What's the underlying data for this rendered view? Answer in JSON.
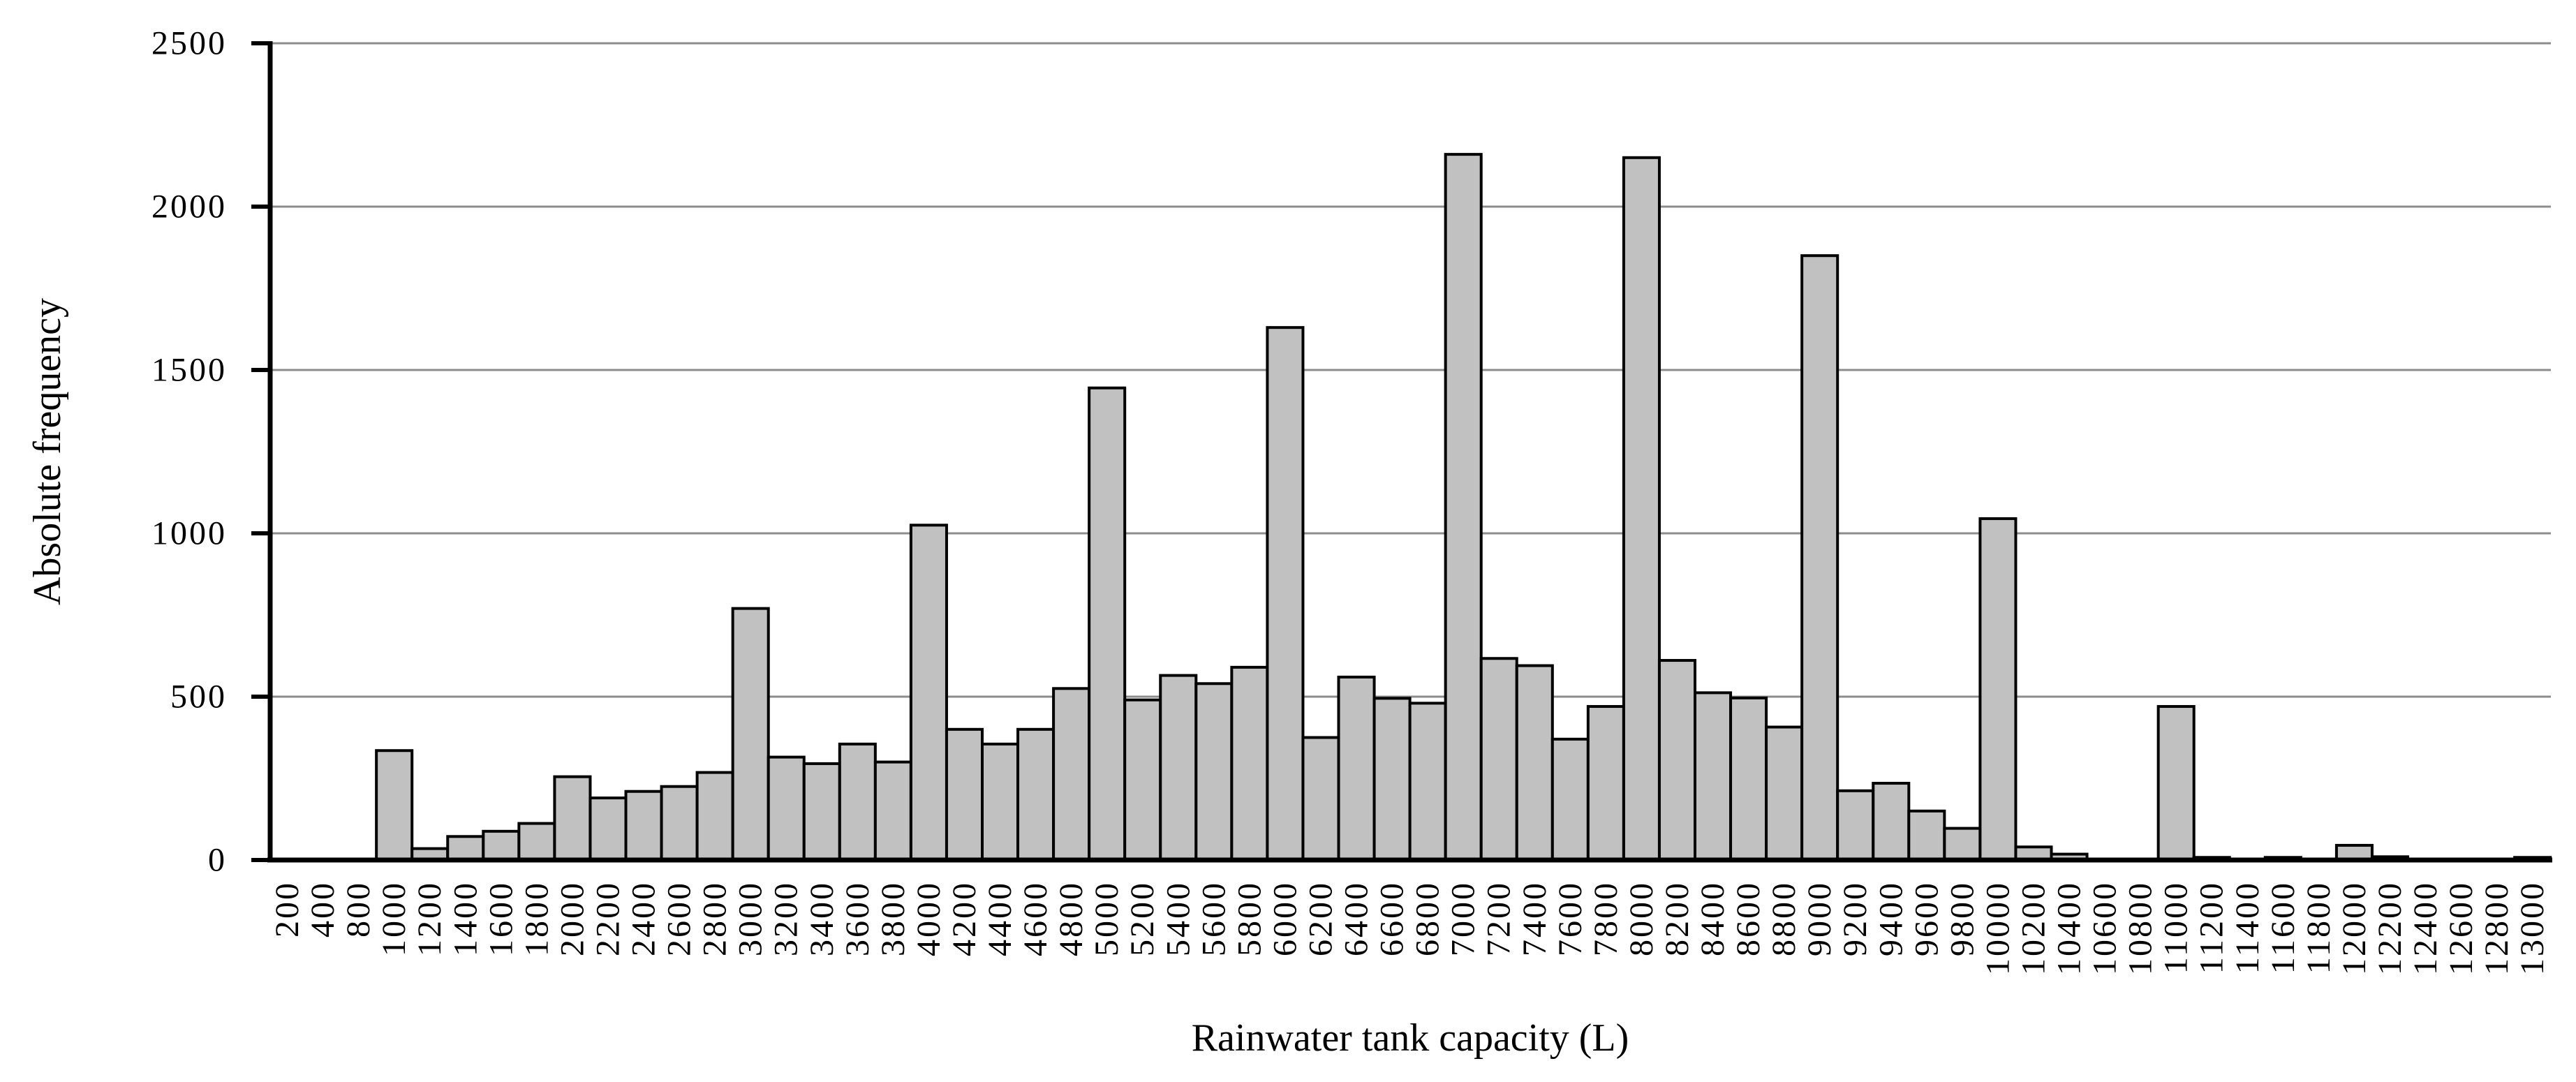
{
  "chart_data": {
    "type": "bar",
    "title": "",
    "xlabel": "Rainwater tank capacity (L)",
    "ylabel": "Absolute frequency",
    "categories": [
      "200",
      "400",
      "800",
      "1000",
      "1200",
      "1400",
      "1600",
      "1800",
      "2000",
      "2200",
      "2400",
      "2600",
      "2800",
      "3000",
      "3200",
      "3400",
      "3600",
      "3800",
      "4000",
      "4200",
      "4400",
      "4600",
      "4800",
      "5000",
      "5200",
      "5400",
      "5600",
      "5800",
      "6000",
      "6200",
      "6400",
      "6600",
      "6800",
      "7000",
      "7200",
      "7400",
      "7600",
      "7800",
      "8000",
      "8200",
      "8400",
      "8600",
      "8800",
      "9000",
      "9200",
      "9400",
      "9600",
      "9800",
      "10000",
      "10200",
      "10400",
      "10600",
      "10800",
      "11000",
      "11200",
      "11400",
      "11600",
      "11800",
      "12000",
      "12200",
      "12400",
      "12600",
      "12800",
      "13000"
    ],
    "values": [
      3,
      3,
      3,
      335,
      35,
      72,
      88,
      112,
      255,
      190,
      210,
      225,
      268,
      770,
      315,
      295,
      355,
      300,
      1025,
      400,
      355,
      400,
      525,
      1445,
      490,
      565,
      540,
      590,
      1630,
      375,
      560,
      495,
      480,
      2160,
      617,
      595,
      370,
      470,
      2150,
      611,
      512,
      496,
      407,
      1850,
      212,
      235,
      150,
      97,
      1045,
      40,
      18,
      2,
      3,
      470,
      8,
      2,
      8,
      2,
      45,
      10,
      0,
      0,
      0,
      8
    ],
    "ylim": [
      0,
      2500
    ],
    "yticks": [
      0,
      500,
      1000,
      1500,
      2000,
      2500
    ],
    "grid": true,
    "legend": "none",
    "bar_fill": "#c1c1c1",
    "bar_border": "#000000",
    "gridline_color": "#8c8c8c",
    "axis_color": "#000000",
    "background": "#ffffff"
  }
}
